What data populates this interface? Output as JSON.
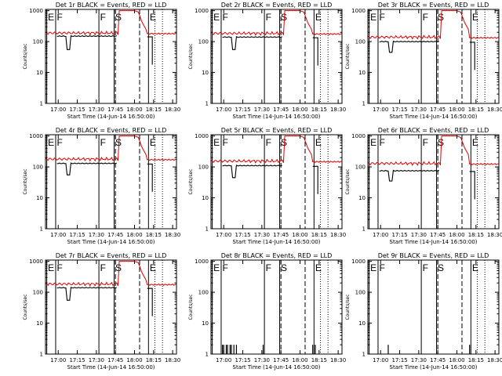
{
  "figure": {
    "background": "#ffffff",
    "colors": {
      "events": "#000000",
      "lld": "#e00000",
      "axes": "#000000"
    }
  },
  "chart_data": [
    {
      "type": "line",
      "title": "Det 1r BLACK = Events, RED = LLD",
      "xlabel": "Start Time (14-Jun-14 16:50:00)",
      "ylabel": "Counts/sec",
      "x_tick_labels": [
        "17:00",
        "17:15",
        "17:30",
        "17:45",
        "18:00",
        "18:15",
        "18:30"
      ],
      "y_tick_labels": [
        "1",
        "10",
        "100",
        "1000"
      ],
      "yscale": "log",
      "ylim": [
        1,
        1100
      ],
      "xlim": [
        "16:50",
        "18:33"
      ],
      "markers": [
        {
          "label": "E",
          "time": "16:51"
        },
        {
          "label": "F",
          "time": "16:58"
        },
        {
          "label": "F",
          "time": "17:32"
        },
        {
          "label": "S",
          "time": "17:44"
        },
        {
          "label": "E",
          "time": "18:11"
        }
      ],
      "series": [
        {
          "name": "BLACK = Events",
          "color": "#000000",
          "style": "gap_dip",
          "level": 150,
          "dip_to": 55
        },
        {
          "name": "RED = LLD",
          "color": "#e00000",
          "style": "lld",
          "level": 190
        }
      ]
    },
    {
      "type": "line",
      "title": "Det 2r BLACK = Events, RED = LLD",
      "xlabel": "Start Time (14-Jun-14 16:50:00)",
      "ylabel": "Counts/sec",
      "x_tick_labels": [
        "17:00",
        "17:15",
        "17:30",
        "17:45",
        "18:00",
        "18:15",
        "18:30"
      ],
      "y_tick_labels": [
        "1",
        "10",
        "100",
        "1000"
      ],
      "yscale": "log",
      "ylim": [
        1,
        1100
      ],
      "xlim": [
        "16:50",
        "18:33"
      ],
      "markers": [
        {
          "label": "E",
          "time": "16:51"
        },
        {
          "label": "F",
          "time": "16:58"
        },
        {
          "label": "F",
          "time": "17:32"
        },
        {
          "label": "S",
          "time": "17:44"
        },
        {
          "label": "E",
          "time": "18:11"
        }
      ],
      "series": [
        {
          "name": "BLACK = Events",
          "color": "#000000",
          "style": "gap_dip",
          "level": 140,
          "dip_to": 55
        },
        {
          "name": "RED = LLD",
          "color": "#e00000",
          "style": "lld",
          "level": 185
        }
      ]
    },
    {
      "type": "line",
      "title": "Det 3r BLACK = Events, RED = LLD",
      "xlabel": "Start Time (14-Jun-14 16:50:00)",
      "ylabel": "Counts/sec",
      "x_tick_labels": [
        "17:00",
        "17:15",
        "17:30",
        "17:45",
        "18:00",
        "18:15",
        "18:30"
      ],
      "y_tick_labels": [
        "1",
        "10",
        "100",
        "1000"
      ],
      "yscale": "log",
      "ylim": [
        1,
        1100
      ],
      "xlim": [
        "16:50",
        "18:33"
      ],
      "markers": [
        {
          "label": "E",
          "time": "16:51"
        },
        {
          "label": "F",
          "time": "16:58"
        },
        {
          "label": "F",
          "time": "17:32"
        },
        {
          "label": "S",
          "time": "17:44"
        },
        {
          "label": "E",
          "time": "18:11"
        }
      ],
      "series": [
        {
          "name": "BLACK = Events",
          "color": "#000000",
          "style": "gap_dip",
          "level": 100,
          "dip_to": 45
        },
        {
          "name": "RED = LLD",
          "color": "#e00000",
          "style": "lld",
          "level": 140
        }
      ]
    },
    {
      "type": "line",
      "title": "Det 4r BLACK = Events, RED = LLD",
      "xlabel": "Start Time (14-Jun-14 16:50:00)",
      "ylabel": "Counts/sec",
      "x_tick_labels": [
        "17:00",
        "17:15",
        "17:30",
        "17:45",
        "18:00",
        "18:15",
        "18:30"
      ],
      "y_tick_labels": [
        "1",
        "10",
        "100",
        "1000"
      ],
      "yscale": "log",
      "ylim": [
        1,
        1100
      ],
      "xlim": [
        "16:50",
        "18:33"
      ],
      "markers": [
        {
          "label": "E",
          "time": "16:51"
        },
        {
          "label": "F",
          "time": "16:58"
        },
        {
          "label": "F",
          "time": "17:32"
        },
        {
          "label": "S",
          "time": "17:44"
        },
        {
          "label": "E",
          "time": "18:11"
        }
      ],
      "series": [
        {
          "name": "BLACK = Events",
          "color": "#000000",
          "style": "gap_dip",
          "level": 130,
          "dip_to": 55
        },
        {
          "name": "RED = LLD",
          "color": "#e00000",
          "style": "lld",
          "level": 180
        }
      ]
    },
    {
      "type": "line",
      "title": "Det 5r BLACK = Events, RED = LLD",
      "xlabel": "Start Time (14-Jun-14 16:50:00)",
      "ylabel": "Counts/sec",
      "x_tick_labels": [
        "17:00",
        "17:15",
        "17:30",
        "17:45",
        "18:00",
        "18:15",
        "18:30"
      ],
      "y_tick_labels": [
        "1",
        "10",
        "100",
        "1000"
      ],
      "yscale": "log",
      "ylim": [
        1,
        1100
      ],
      "xlim": [
        "16:50",
        "18:33"
      ],
      "markers": [
        {
          "label": "E",
          "time": "16:51"
        },
        {
          "label": "F",
          "time": "16:58"
        },
        {
          "label": "F",
          "time": "17:32"
        },
        {
          "label": "S",
          "time": "17:44"
        },
        {
          "label": "E",
          "time": "18:11"
        }
      ],
      "series": [
        {
          "name": "BLACK = Events",
          "color": "#000000",
          "style": "gap_dip",
          "level": 110,
          "dip_to": 45
        },
        {
          "name": "RED = LLD",
          "color": "#e00000",
          "style": "lld",
          "level": 155
        }
      ]
    },
    {
      "type": "line",
      "title": "Det 6r BLACK = Events, RED = LLD",
      "xlabel": "Start Time (14-Jun-14 16:50:00)",
      "ylabel": "Counts/sec",
      "x_tick_labels": [
        "17:00",
        "17:15",
        "17:30",
        "17:45",
        "18:00",
        "18:15",
        "18:30"
      ],
      "y_tick_labels": [
        "1",
        "10",
        "100",
        "1000"
      ],
      "yscale": "log",
      "ylim": [
        1,
        1100
      ],
      "xlim": [
        "16:50",
        "18:33"
      ],
      "markers": [
        {
          "label": "E",
          "time": "16:51"
        },
        {
          "label": "F",
          "time": "16:58"
        },
        {
          "label": "F",
          "time": "17:32"
        },
        {
          "label": "S",
          "time": "17:44"
        },
        {
          "label": "E",
          "time": "18:11"
        }
      ],
      "series": [
        {
          "name": "BLACK = Events",
          "color": "#000000",
          "style": "gap_dip",
          "level": 75,
          "dip_to": 35
        },
        {
          "name": "RED = LLD",
          "color": "#e00000",
          "style": "lld",
          "level": 130
        }
      ]
    },
    {
      "type": "line",
      "title": "Det 7r BLACK = Events, RED = LLD",
      "xlabel": "Start Time (14-Jun-14 16:50:00)",
      "ylabel": "Counts/sec",
      "x_tick_labels": [
        "17:00",
        "17:15",
        "17:30",
        "17:45",
        "18:00",
        "18:15",
        "18:30"
      ],
      "y_tick_labels": [
        "1",
        "10",
        "100",
        "1000"
      ],
      "yscale": "log",
      "ylim": [
        1,
        1100
      ],
      "xlim": [
        "16:50",
        "18:33"
      ],
      "markers": [
        {
          "label": "E",
          "time": "16:51"
        },
        {
          "label": "F",
          "time": "16:58"
        },
        {
          "label": "F",
          "time": "17:32"
        },
        {
          "label": "S",
          "time": "17:44"
        },
        {
          "label": "E",
          "time": "18:11"
        }
      ],
      "series": [
        {
          "name": "BLACK = Events",
          "color": "#000000",
          "style": "gap_dip",
          "level": 140,
          "dip_to": 55
        },
        {
          "name": "RED = LLD",
          "color": "#e00000",
          "style": "lld",
          "level": 185
        }
      ]
    },
    {
      "type": "line",
      "title": "Det 8r BLACK = Events, RED = LLD",
      "xlabel": "Start Time (14-Jun-14 16:50:00)",
      "ylabel": "Counts/sec",
      "x_tick_labels": [
        "17:00",
        "17:15",
        "17:30",
        "17:45",
        "18:00",
        "18:15",
        "18:30"
      ],
      "y_tick_labels": [
        "1",
        "10",
        "100",
        "1000"
      ],
      "yscale": "log",
      "ylim": [
        1,
        1100
      ],
      "xlim": [
        "16:50",
        "18:33"
      ],
      "markers": [
        {
          "label": "E",
          "time": "16:51"
        },
        {
          "label": "F",
          "time": "16:58"
        },
        {
          "label": "F",
          "time": "17:32"
        },
        {
          "label": "S",
          "time": "17:44"
        },
        {
          "label": "E",
          "time": "18:11"
        }
      ],
      "series": [
        {
          "name": "BLACK = Events",
          "color": "#000000",
          "style": "spikes",
          "spikes": [
            [
              "16:59",
              2
            ],
            [
              "17:00",
              2
            ],
            [
              "17:01",
              1
            ],
            [
              "17:02",
              2
            ],
            [
              "17:03",
              2
            ],
            [
              "17:04",
              1
            ],
            [
              "17:05",
              2
            ],
            [
              "17:06",
              2
            ],
            [
              "17:08",
              2
            ],
            [
              "17:09",
              1
            ],
            [
              "17:10",
              2
            ],
            [
              "17:31",
              2
            ],
            [
              "18:10",
              2
            ],
            [
              "18:11",
              1
            ],
            [
              "18:12",
              2
            ]
          ]
        }
      ]
    },
    {
      "type": "line",
      "title": "Det 9r BLACK = Events, RED = LLD",
      "xlabel": "Start Time (14-Jun-14 16:50:00)",
      "ylabel": "Counts/sec",
      "x_tick_labels": [
        "17:00",
        "17:15",
        "17:30",
        "17:45",
        "18:00",
        "18:15",
        "18:30"
      ],
      "y_tick_labels": [
        "1",
        "10",
        "100",
        "1000"
      ],
      "yscale": "log",
      "ylim": [
        1,
        1100
      ],
      "xlim": [
        "16:50",
        "18:33"
      ],
      "markers": [
        {
          "label": "E",
          "time": "16:51"
        },
        {
          "label": "F",
          "time": "16:58"
        },
        {
          "label": "F",
          "time": "17:32"
        },
        {
          "label": "S",
          "time": "17:44"
        },
        {
          "label": "E",
          "time": "18:11"
        }
      ],
      "series": [
        {
          "name": "BLACK = Events",
          "color": "#000000",
          "style": "spikes",
          "spikes": [
            [
              "17:05",
              1
            ],
            [
              "17:06",
              2
            ],
            [
              "17:07",
              1
            ],
            [
              "18:10",
              2
            ]
          ]
        }
      ]
    }
  ]
}
